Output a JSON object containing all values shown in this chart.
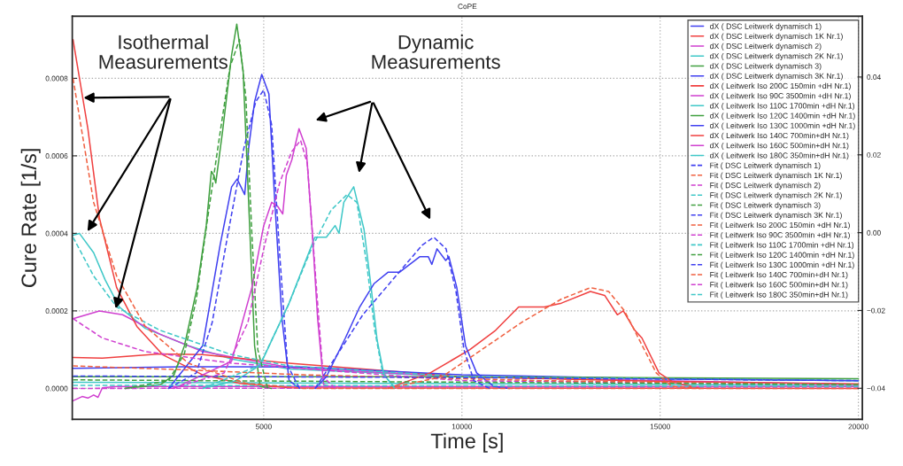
{
  "chart_data": {
    "type": "line",
    "title": "CoPE",
    "xlabel": "Time [s]",
    "ylabel": "Cure Rate [1/s]",
    "xlim": [
      170,
      20100
    ],
    "xticks": [
      5000,
      10000,
      15000,
      20000
    ],
    "ylim": [
      -8e-05,
      0.00096
    ],
    "yticks": [
      {
        "value": 0,
        "label": "0.0000"
      },
      0.0002,
      0.0004,
      0.0006,
      0.0008
    ],
    "y2lim": [
      -0.048,
      0.0556
    ],
    "y2ticks": [
      {
        "value": -0.04,
        "label": "−0.04"
      },
      {
        "value": -0.02,
        "label": "−0.02"
      },
      {
        "value": 0,
        "label": "0.00"
      },
      0.02,
      0.04
    ],
    "grid": true,
    "legend": "top right",
    "annotations": [
      "Isothermal\nMeasurements",
      "Dynamic\nMeasurements"
    ],
    "series": [
      {
        "name": "dX ( DSC Leitwerk dynamisch 1)",
        "color": "#4040f0",
        "line_style": "solid",
        "x": [
          6300,
          6580,
          7060,
          7420,
          7780,
          8140,
          8430,
          8940,
          9150,
          9240,
          9370,
          9590,
          9670,
          9870,
          10090,
          10370,
          10800,
          11200
        ],
        "values": [
          0,
          3e-05,
          0.00013,
          0.00021,
          0.00027,
          0.0003,
          0.0003,
          0.00034,
          0.00034,
          0.00032,
          0.00036,
          0.00033,
          0.00034,
          0.00026,
          0.00011,
          4e-05,
          5e-06,
          0
        ]
      },
      {
        "name": "dX ( DSC Leitwerk dynamisch 1K Nr.1)",
        "color": "#f04040",
        "line_style": "solid",
        "x": [
          8140,
          9200,
          10200,
          10850,
          11430,
          12080,
          12510,
          13240,
          13600,
          13920,
          14070,
          14360,
          14540,
          14970,
          15330,
          16000
        ],
        "values": [
          0,
          4e-05,
          0.0001,
          0.00015,
          0.00021,
          0.00021,
          0.00022,
          0.00025,
          0.00024,
          0.00019,
          0.0002,
          0.00015,
          0.00013,
          4e-05,
          1.6e-05,
          0
        ]
      },
      {
        "name": "dX ( DSC Leitwerk dynamisch 2)",
        "color": "#d040d0",
        "line_style": "solid",
        "x": [
          2740,
          4190,
          4700,
          5000,
          5200,
          5350,
          5480,
          5570,
          5710,
          5890,
          6070,
          6220,
          6360,
          6510,
          6800
        ],
        "values": [
          0,
          7e-05,
          0.00026,
          0.00042,
          0.00048,
          0.00047,
          0.00045,
          0.00055,
          0.00059,
          0.00067,
          0.00062,
          0.00041,
          0.00018,
          1e-05,
          0
        ]
      },
      {
        "name": "dX ( DSC Leitwerk dynamisch 2K Nr.1)",
        "color": "#40c8c8",
        "line_style": "solid",
        "x": [
          3460,
          4300,
          4910,
          5640,
          6290,
          6580,
          6800,
          6900,
          7020,
          7270,
          7530,
          7710,
          7860,
          8030,
          8280
        ],
        "values": [
          0,
          2e-05,
          6e-05,
          0.00022,
          0.00039,
          0.00039,
          0.00042,
          0.0004,
          0.00048,
          0.00052,
          0.00041,
          0.00026,
          0.000125,
          3.6e-05,
          5e-06
        ]
      },
      {
        "name": "dX ( DSC Leitwerk dynamisch 3)",
        "color": "#40a040",
        "line_style": "solid",
        "x": [
          1500,
          2400,
          2740,
          3000,
          3320,
          3550,
          3680,
          3740,
          3790,
          3970,
          4190,
          4320,
          4480,
          4620,
          4770,
          4910,
          5200
        ],
        "values": [
          0,
          1e-05,
          3.5e-05,
          0.00011,
          0.00026,
          0.00042,
          0.00056,
          0.00055,
          0.00053,
          0.00067,
          0.00086,
          0.00094,
          0.00082,
          0.00048,
          0.00011,
          5e-06,
          0
        ]
      },
      {
        "name": "dX ( DSC Leitwerk dynamisch 3K Nr.1)",
        "color": "#4040f0",
        "line_style": "solid",
        "x": [
          2600,
          3460,
          3900,
          4190,
          4330,
          4520,
          4620,
          4770,
          4950,
          5130,
          5280,
          5460,
          5640,
          5900
        ],
        "values": [
          0,
          0.00011,
          0.00037,
          0.00052,
          0.00054,
          0.0005,
          0.00062,
          0.00074,
          0.00081,
          0.00076,
          0.00048,
          0.00018,
          2e-05,
          0
        ]
      },
      {
        "name": "dX ( Leitwerk Iso 200C 150min +dH Nr.1)",
        "color": "#f04040",
        "line_style": "solid",
        "x": [
          190,
          565,
          855,
          1290,
          1800,
          2450,
          3460,
          4400,
          5640,
          20000
        ],
        "values": [
          0.0009,
          0.00067,
          0.00044,
          0.00026,
          0.00016,
          8.7e-05,
          3.5e-05,
          1.3e-05,
          1.5e-06,
          0
        ]
      },
      {
        "name": "dX ( Leitwerk Iso 90C 3500min +dH Nr.1)",
        "color": "#d040d0",
        "line_style": "solid",
        "x": [
          190,
          420,
          565,
          710,
          820,
          930,
          1290,
          20000
        ],
        "values": [
          -3.2e-05,
          -2.1e-05,
          -2.5e-05,
          -1.7e-05,
          -2.3e-05,
          1.5e-06,
          5e-06,
          5e-06
        ]
      },
      {
        "name": "dX ( Leitwerk Iso 110C 1700min +dH Nr.1)",
        "color": "#40c8c8",
        "line_style": "solid",
        "x": [
          190,
          20000
        ],
        "values": [
          1.6e-05,
          8e-06
        ]
      },
      {
        "name": "dX ( Leitwerk Iso 120C 1400min +dH Nr.1)",
        "color": "#40a040",
        "line_style": "solid",
        "x": [
          190,
          10000,
          20000
        ],
        "values": [
          3e-05,
          3e-05,
          2.5e-05
        ]
      },
      {
        "name": "dX ( Leitwerk Iso 130C 1000min +dH Nr.1)",
        "color": "#4040f0",
        "line_style": "solid",
        "x": [
          190,
          3000,
          6000,
          10000,
          15000,
          20000
        ],
        "values": [
          5.2e-05,
          5.6e-05,
          5.5e-05,
          3.5e-05,
          2.5e-05,
          2e-05
        ]
      },
      {
        "name": "dX ( Leitwerk Iso 140C 700min+dH Nr.1)",
        "color": "#f04040",
        "line_style": "solid",
        "x": [
          190,
          930,
          2380,
          3460,
          5640,
          10000,
          15000,
          20000
        ],
        "values": [
          8e-05,
          7.8e-05,
          8.9e-05,
          8.7e-05,
          6.5e-05,
          3e-05,
          1.8e-05,
          1.2e-05
        ]
      },
      {
        "name": "dX ( Leitwerk Iso 160C 500min+dH Nr.1)",
        "color": "#d040d0",
        "line_style": "solid",
        "x": [
          190,
          855,
          1440,
          2380,
          3460,
          5640,
          10000,
          20000
        ],
        "values": [
          0.00018,
          0.0002,
          0.00019,
          0.00014,
          9.5e-05,
          5.4e-05,
          3e-05,
          1e-05
        ]
      },
      {
        "name": "dX ( Leitwerk Iso 180C 350min+dH Nr.1)",
        "color": "#40c8c8",
        "line_style": "solid",
        "x": [
          190,
          350,
          710,
          1000,
          1360,
          2010,
          3100,
          4190,
          5640,
          10000,
          20000
        ],
        "values": [
          0.000395,
          0.0004,
          0.00035,
          0.00028,
          0.00021,
          0.000155,
          0.00011,
          7.6e-05,
          5e-05,
          3e-05,
          2e-05
        ]
      },
      {
        "name": "Fit ( DSC Leitwerk dynamisch 1)",
        "color": "#4040f0",
        "line_style": "dashed",
        "x": [
          6300,
          7000,
          7500,
          8000,
          8500,
          9000,
          9290,
          9600,
          9850,
          10050,
          10300,
          10700
        ],
        "values": [
          0,
          0.00011,
          0.00019,
          0.00025,
          0.00031,
          0.00037,
          0.00039,
          0.00036,
          0.00025,
          0.0001,
          2e-05,
          0
        ]
      },
      {
        "name": "Fit ( DSC Leitwerk dynamisch 1K Nr.1)",
        "color": "#f06040",
        "line_style": "dashed",
        "x": [
          8140,
          9500,
          10500,
          11500,
          12500,
          13240,
          13700,
          14100,
          14500,
          14900,
          15300,
          16000
        ],
        "values": [
          0,
          3e-05,
          0.0001,
          0.00017,
          0.00023,
          0.00026,
          0.00025,
          0.0002,
          0.00012,
          4e-05,
          5e-06,
          0
        ]
      },
      {
        "name": "Fit ( DSC Leitwerk dynamisch 2)",
        "color": "#d040d0",
        "line_style": "dashed",
        "x": [
          2700,
          4000,
          4600,
          5000,
          5400,
          5700,
          5930,
          6100,
          6300,
          6500,
          6800
        ],
        "values": [
          0,
          4e-05,
          0.00017,
          0.00036,
          0.00053,
          0.00061,
          0.00064,
          0.00058,
          0.0003,
          3e-05,
          0
        ]
      },
      {
        "name": "Fit ( DSC Leitwerk dynamisch 2K Nr.1)",
        "color": "#40c8c8",
        "line_style": "dashed",
        "x": [
          3460,
          4900,
          5600,
          6200,
          6700,
          7100,
          7350,
          7600,
          7800,
          8000,
          8300
        ],
        "values": [
          0,
          6e-05,
          0.00021,
          0.00036,
          0.00046,
          0.0005,
          0.00048,
          0.00032,
          0.00015,
          4e-05,
          0
        ]
      },
      {
        "name": "Fit ( DSC Leitwerk dynamisch 3)",
        "color": "#40a040",
        "line_style": "dashed",
        "x": [
          1500,
          2600,
          3000,
          3300,
          3600,
          3900,
          4150,
          4390,
          4550,
          4700,
          4850,
          5100
        ],
        "values": [
          0,
          2e-05,
          9e-05,
          0.00023,
          0.00045,
          0.00066,
          0.00083,
          0.0009,
          0.00075,
          0.0004,
          0.0001,
          0
        ]
      },
      {
        "name": "Fit ( DSC Leitwerk dynamisch 3K Nr.1)",
        "color": "#4040f0",
        "line_style": "dashed",
        "x": [
          2600,
          3300,
          3700,
          4100,
          4500,
          4800,
          5000,
          5200,
          5400,
          5600,
          5900
        ],
        "values": [
          0,
          4e-05,
          0.00017,
          0.0004,
          0.00062,
          0.00074,
          0.00077,
          0.00068,
          0.00035,
          6e-05,
          0
        ]
      },
      {
        "name": "Fit ( Leitwerk Iso 200C 150min +dH Nr.1)",
        "color": "#f06040",
        "line_style": "dashed",
        "x": [
          190,
          710,
          1290,
          2010,
          3100,
          4550,
          6000,
          20000
        ],
        "values": [
          0.0008,
          0.00048,
          0.00029,
          0.00016,
          6.5e-05,
          1.3e-05,
          0,
          0
        ]
      },
      {
        "name": "Fit ( Leitwerk Iso 90C 3500min +dH Nr.1)",
        "color": "#d040d0",
        "line_style": "dashed",
        "x": [
          190,
          20000
        ],
        "values": [
          0,
          1e-06
        ]
      },
      {
        "name": "Fit ( Leitwerk Iso 110C 1700min +dH Nr.1)",
        "color": "#40c8c8",
        "line_style": "dashed",
        "x": [
          190,
          20000
        ],
        "values": [
          8e-06,
          5e-06
        ]
      },
      {
        "name": "Fit ( Leitwerk Iso 120C 1400min +dH Nr.1)",
        "color": "#40a040",
        "line_style": "dashed",
        "x": [
          190,
          20000
        ],
        "values": [
          2.2e-05,
          1e-05
        ]
      },
      {
        "name": "Fit ( Leitwerk Iso 130C 1000min +dH Nr.1)",
        "color": "#4040f0",
        "line_style": "dashed",
        "x": [
          190,
          10000,
          20000
        ],
        "values": [
          3.2e-05,
          2.8e-05,
          2e-05
        ]
      },
      {
        "name": "Fit ( Leitwerk Iso 140C 700min+dH Nr.1)",
        "color": "#f06040",
        "line_style": "dashed",
        "x": [
          190,
          3000,
          6000,
          12000,
          20000
        ],
        "values": [
          5.8e-05,
          4.8e-05,
          3.5e-05,
          2e-05,
          1e-05
        ]
      },
      {
        "name": "Fit ( Leitwerk Iso 160C 500min+dH Nr.1)",
        "color": "#d040d0",
        "line_style": "dashed",
        "x": [
          190,
          930,
          2010,
          4190,
          10000,
          20000
        ],
        "values": [
          0.00018,
          0.00013,
          9.5e-05,
          6.5e-05,
          2e-05,
          1e-05
        ]
      },
      {
        "name": "Fit ( Leitwerk Iso 180C 350min+dH Nr.1)",
        "color": "#40c8c8",
        "line_style": "dashed",
        "x": [
          190,
          710,
          1290,
          2380,
          4190,
          5640,
          10000,
          20000
        ],
        "values": [
          0.00039,
          0.00029,
          0.00021,
          0.00015,
          8.7e-05,
          5.8e-05,
          3e-05,
          2e-05
        ]
      }
    ]
  }
}
